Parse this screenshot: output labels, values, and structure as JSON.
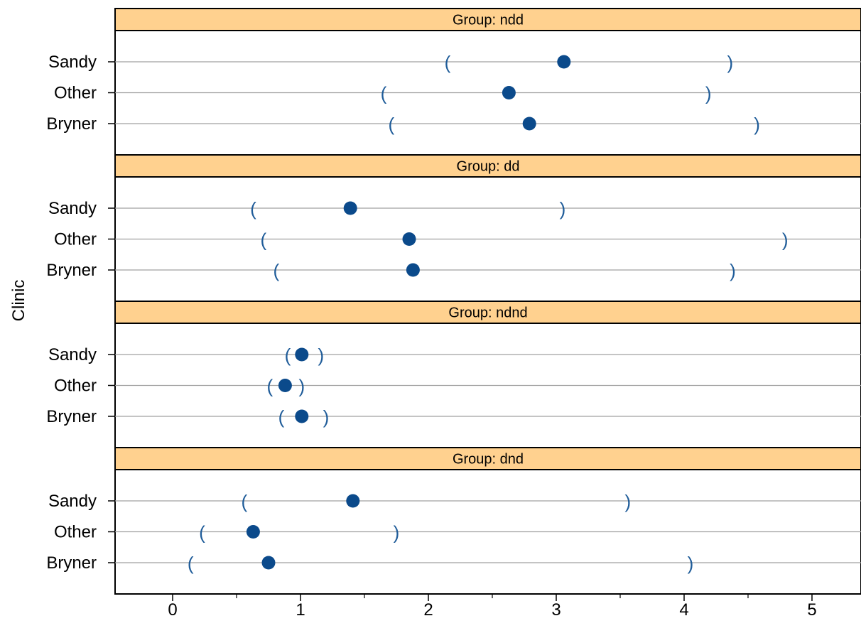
{
  "chart_data": {
    "type": "dotplot",
    "ylabel": "Clinic",
    "xlabel": "",
    "xlim": [
      -0.45,
      5.35
    ],
    "x_ticks": [
      0,
      1,
      2,
      3,
      4,
      5
    ],
    "x_minor_ticks": [
      0.5,
      1.5,
      2.5,
      3.5,
      4.5
    ],
    "categories": [
      "Sandy",
      "Other",
      "Bryner"
    ],
    "colors": {
      "point": "#0b4a8b",
      "interval": "#1f5c99",
      "strip": "#ffd18f",
      "gridline": "#a0a0a0"
    },
    "panels": [
      {
        "strip_label": "Group: ndd",
        "rows": [
          {
            "label": "Sandy",
            "estimate": 3.06,
            "lower": 2.15,
            "upper": 4.36
          },
          {
            "label": "Other",
            "estimate": 2.63,
            "lower": 1.65,
            "upper": 4.19
          },
          {
            "label": "Bryner",
            "estimate": 2.79,
            "lower": 1.71,
            "upper": 4.57
          }
        ]
      },
      {
        "strip_label": "Group: dd",
        "rows": [
          {
            "label": "Sandy",
            "estimate": 1.39,
            "lower": 0.63,
            "upper": 3.05
          },
          {
            "label": "Other",
            "estimate": 1.85,
            "lower": 0.71,
            "upper": 4.79
          },
          {
            "label": "Bryner",
            "estimate": 1.88,
            "lower": 0.81,
            "upper": 4.38
          }
        ]
      },
      {
        "strip_label": "Group: ndnd",
        "rows": [
          {
            "label": "Sandy",
            "estimate": 1.01,
            "lower": 0.9,
            "upper": 1.16
          },
          {
            "label": "Other",
            "estimate": 0.88,
            "lower": 0.76,
            "upper": 1.01
          },
          {
            "label": "Bryner",
            "estimate": 1.01,
            "lower": 0.85,
            "upper": 1.2
          }
        ]
      },
      {
        "strip_label": "Group: dnd",
        "rows": [
          {
            "label": "Sandy",
            "estimate": 1.41,
            "lower": 0.56,
            "upper": 3.56
          },
          {
            "label": "Other",
            "estimate": 0.63,
            "lower": 0.23,
            "upper": 1.75
          },
          {
            "label": "Bryner",
            "estimate": 0.75,
            "lower": 0.14,
            "upper": 4.05
          }
        ]
      }
    ]
  }
}
